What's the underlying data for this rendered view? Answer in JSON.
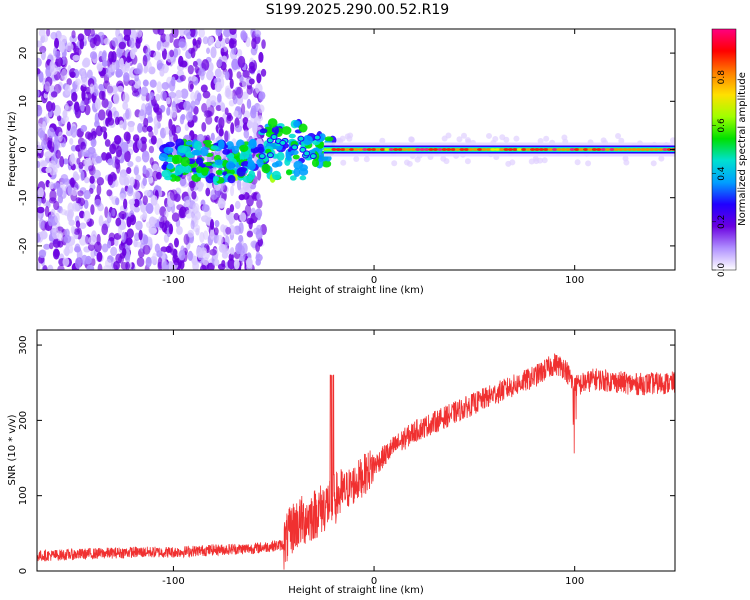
{
  "figure_title": "S199.2025.290.00.52.R19",
  "colors": {
    "snr_line": "#f03030",
    "spectrogram_cmap": [
      "#ffffff",
      "#b090ff",
      "#6a00e0",
      "#2000ff",
      "#00a0ff",
      "#00e0d0",
      "#00e000",
      "#a0ff00",
      "#ffe000",
      "#ff8000",
      "#ff0000",
      "#ff0080"
    ]
  },
  "chart_data": [
    {
      "type": "heatmap",
      "title": "",
      "xlabel": "Height of straight line (km)",
      "ylabel": "Frequency (Hz)",
      "xlim": [
        -168,
        150
      ],
      "ylim": [
        -25,
        25
      ],
      "xticks": [
        -100,
        0,
        100
      ],
      "xtick_labels": [
        "-100",
        "0",
        "100"
      ],
      "yticks": [
        -20,
        -10,
        0,
        10,
        20
      ],
      "ytick_labels": [
        "-20",
        "-10",
        "0",
        "10",
        "20"
      ],
      "colorbar": {
        "label": "Normalized spectral amplitude",
        "range": [
          0,
          1
        ],
        "ticks": [
          0.0,
          0.2,
          0.4,
          0.6,
          0.8
        ],
        "tick_labels": [
          "0.0",
          "0.2",
          "0.4",
          "0.6",
          "0.8"
        ]
      },
      "description_regions": [
        {
          "x_range": [
            -168,
            -55
          ],
          "pattern": "scattered weak noise across all frequencies"
        },
        {
          "x_range": [
            -55,
            -20
          ],
          "pattern": "emerging signal near 0 Hz, broad"
        },
        {
          "x_range": [
            -20,
            150
          ],
          "pattern": "strong narrow carrier at 0 Hz"
        }
      ]
    },
    {
      "type": "line",
      "title": "",
      "xlabel": "Height of straight line (km)",
      "ylabel": "SNR (10 * v/v)",
      "xlim": [
        -168,
        150
      ],
      "ylim": [
        0,
        320
      ],
      "xticks": [
        -100,
        0,
        100
      ],
      "xtick_labels": [
        "-100",
        "0",
        "100"
      ],
      "yticks": [
        0,
        100,
        200,
        300
      ],
      "ytick_labels": [
        "0",
        "100",
        "200",
        "300"
      ],
      "series": [
        {
          "name": "SNR",
          "x": [
            -168,
            -150,
            -120,
            -100,
            -80,
            -60,
            -45,
            -40,
            -30,
            -20,
            -10,
            0,
            10,
            20,
            40,
            60,
            80,
            90,
            95,
            100,
            110,
            130,
            150
          ],
          "y": [
            20,
            22,
            25,
            25,
            28,
            30,
            35,
            60,
            75,
            95,
            115,
            140,
            165,
            185,
            210,
            235,
            258,
            275,
            270,
            245,
            255,
            248,
            250
          ]
        }
      ]
    }
  ]
}
